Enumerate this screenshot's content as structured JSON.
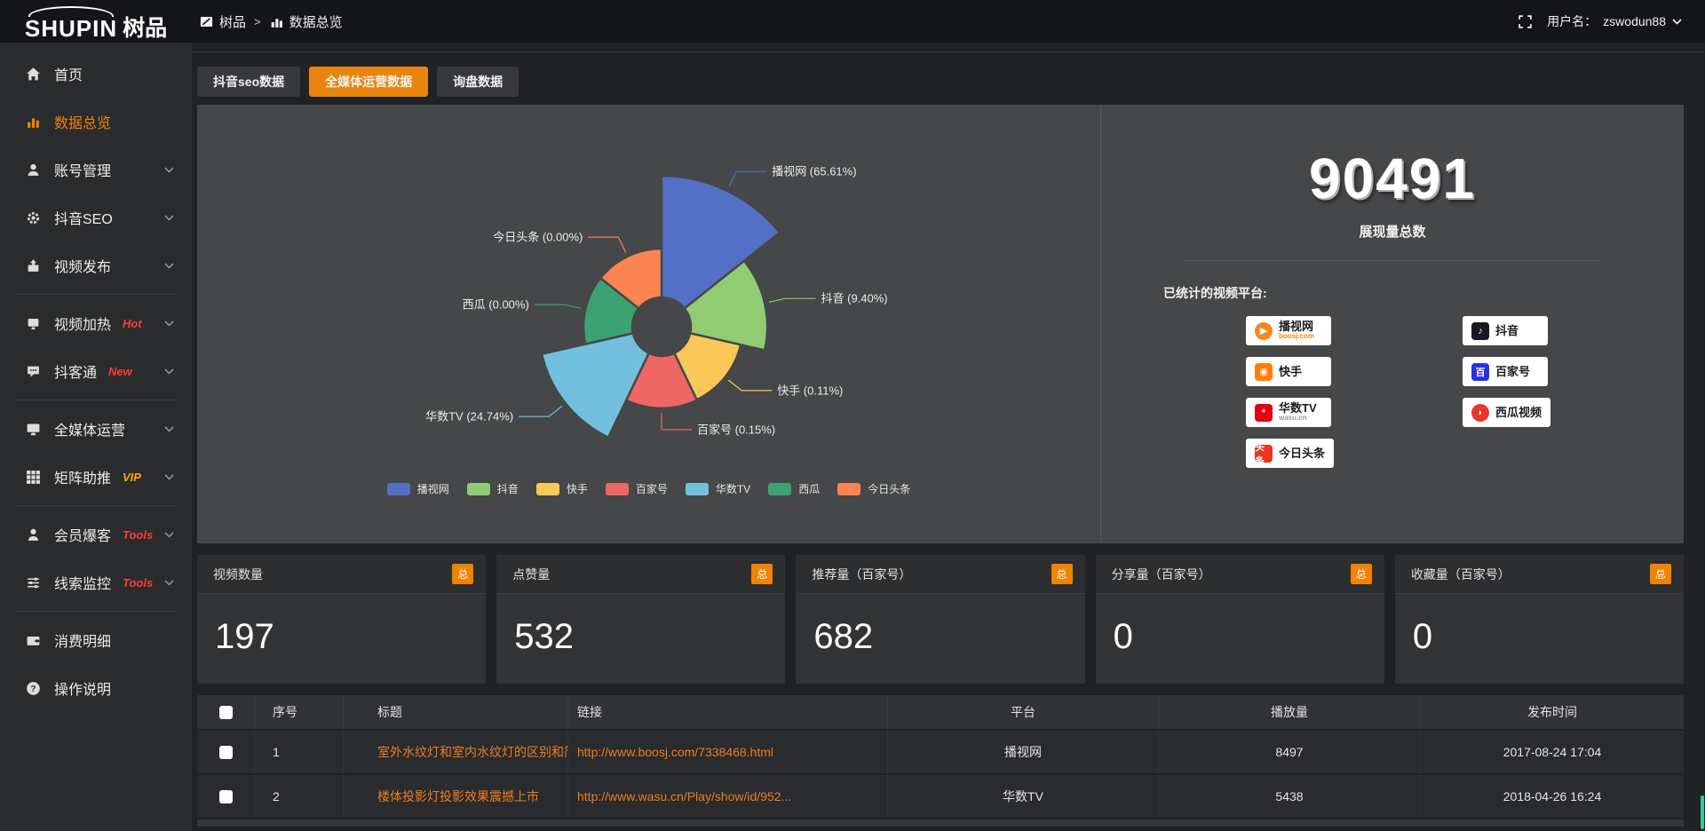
{
  "topbar": {
    "logo_main": "SHUPIN",
    "logo_suffix": "树品",
    "breadcrumb": [
      {
        "label": "树品",
        "icon": "window-icon"
      },
      {
        "label": "数据总览",
        "icon": "mini-bars-icon"
      }
    ],
    "breadcrumb_separator": ">",
    "username_label": "用户名：",
    "username": "zswodun88"
  },
  "sidebar": {
    "items": [
      {
        "label": "首页",
        "icon": "home-icon"
      },
      {
        "label": "数据总览",
        "icon": "chart-bars-icon",
        "active": true
      },
      {
        "label": "账号管理",
        "icon": "user-icon",
        "expandable": true
      },
      {
        "label": "抖音SEO",
        "icon": "gear-icon",
        "expandable": true
      },
      {
        "label": "视频发布",
        "icon": "publish-icon",
        "expandable": true
      },
      {
        "divider": true
      },
      {
        "label": "视频加热",
        "icon": "screen-icon",
        "tag": "Hot",
        "tag_color": "#ff3c33",
        "expandable": true
      },
      {
        "label": "抖客通",
        "icon": "chat-icon",
        "tag": "New",
        "tag_color": "#ff3c33",
        "expandable": true
      },
      {
        "divider": true
      },
      {
        "label": "全媒体运营",
        "icon": "monitor-icon",
        "expandable": true
      },
      {
        "label": "矩阵助推",
        "icon": "grid-icon",
        "tag": "VIP",
        "tag_color": "#ffa800",
        "expandable": true
      },
      {
        "divider": true
      },
      {
        "label": "会员爆客",
        "icon": "member-icon",
        "tag": "Tools",
        "tag_color": "#ff3c33",
        "expandable": true
      },
      {
        "label": "线索监控",
        "icon": "sliders-icon",
        "tag": "Tools",
        "tag_color": "#ff3c33",
        "expandable": true
      },
      {
        "divider": true
      },
      {
        "label": "消费明细",
        "icon": "wallet-icon"
      },
      {
        "label": "操作说明",
        "icon": "help-icon"
      }
    ]
  },
  "tabs": [
    {
      "label": "抖音seo数据",
      "active": false
    },
    {
      "label": "全媒体运营数据",
      "active": true
    },
    {
      "label": "询盘数据",
      "active": false
    }
  ],
  "summary": {
    "total": "90491",
    "label": "展现量总数"
  },
  "platforms": {
    "title": "已统计的视频平台:",
    "left_column": [
      {
        "name": "播视网",
        "sub": "boosj.com",
        "sub_color": "#f08300",
        "color": "#f6881f",
        "glyph": "▶",
        "round": true
      },
      {
        "name": "快手",
        "color": "#ff8000",
        "glyph": "◉",
        "round": false
      },
      {
        "name": "华数TV",
        "sub": "wasu.cn",
        "sub_color": "#999999",
        "color": "#e60012",
        "glyph": "*",
        "round": false
      },
      {
        "name": "今日头条",
        "color": "#ed3321",
        "glyph": "头条",
        "round": false
      }
    ],
    "right_column": [
      {
        "name": "抖音",
        "color": "#161823",
        "glyph": "♪",
        "round": false
      },
      {
        "name": "百家号",
        "color": "#2932e1",
        "glyph": "百",
        "round": false
      },
      {
        "name": "西瓜视频",
        "color": "#e8382e",
        "glyph": "◗",
        "round": true
      }
    ]
  },
  "chart_data": {
    "type": "pie",
    "style": "nightingale-rose",
    "legend_position": "bottom",
    "items": [
      {
        "name": "播视网",
        "pct": 65.61,
        "color": "#5470c6"
      },
      {
        "name": "抖音",
        "pct": 9.4,
        "color": "#91cc75"
      },
      {
        "name": "快手",
        "pct": 0.11,
        "color": "#fac858"
      },
      {
        "name": "百家号",
        "pct": 0.15,
        "color": "#ee6666"
      },
      {
        "name": "华数TV",
        "pct": 24.74,
        "color": "#73c0de"
      },
      {
        "name": "西瓜",
        "pct": 0.0,
        "color": "#3ba272"
      },
      {
        "name": "今日头条",
        "pct": 0.0,
        "color": "#fc8452"
      }
    ]
  },
  "stat_cards": [
    {
      "label": "视频数量",
      "badge": "总",
      "value": "197"
    },
    {
      "label": "点赞量",
      "badge": "总",
      "value": "532"
    },
    {
      "label": "推荐量（百家号）",
      "badge": "总",
      "value": "682"
    },
    {
      "label": "分享量（百家号）",
      "badge": "总",
      "value": "0"
    },
    {
      "label": "收藏量（百家号）",
      "badge": "总",
      "value": "0"
    }
  ],
  "table": {
    "columns": [
      "序号",
      "标题",
      "链接",
      "平台",
      "播放量",
      "发布时间"
    ],
    "rows": [
      {
        "index": "1",
        "title": "室外水纹灯和室内水纹灯的区别和简介",
        "link": "http://www.boosj.com/7338468.html",
        "platform": "播视网",
        "plays": "8497",
        "time": "2017-08-24 17:04"
      },
      {
        "index": "2",
        "title": "楼体投影灯投影效果震撼上市",
        "link": "http://www.wasu.cn/Play/show/id/952...",
        "platform": "华数TV",
        "plays": "5438",
        "time": "2018-04-26 16:24"
      }
    ]
  }
}
